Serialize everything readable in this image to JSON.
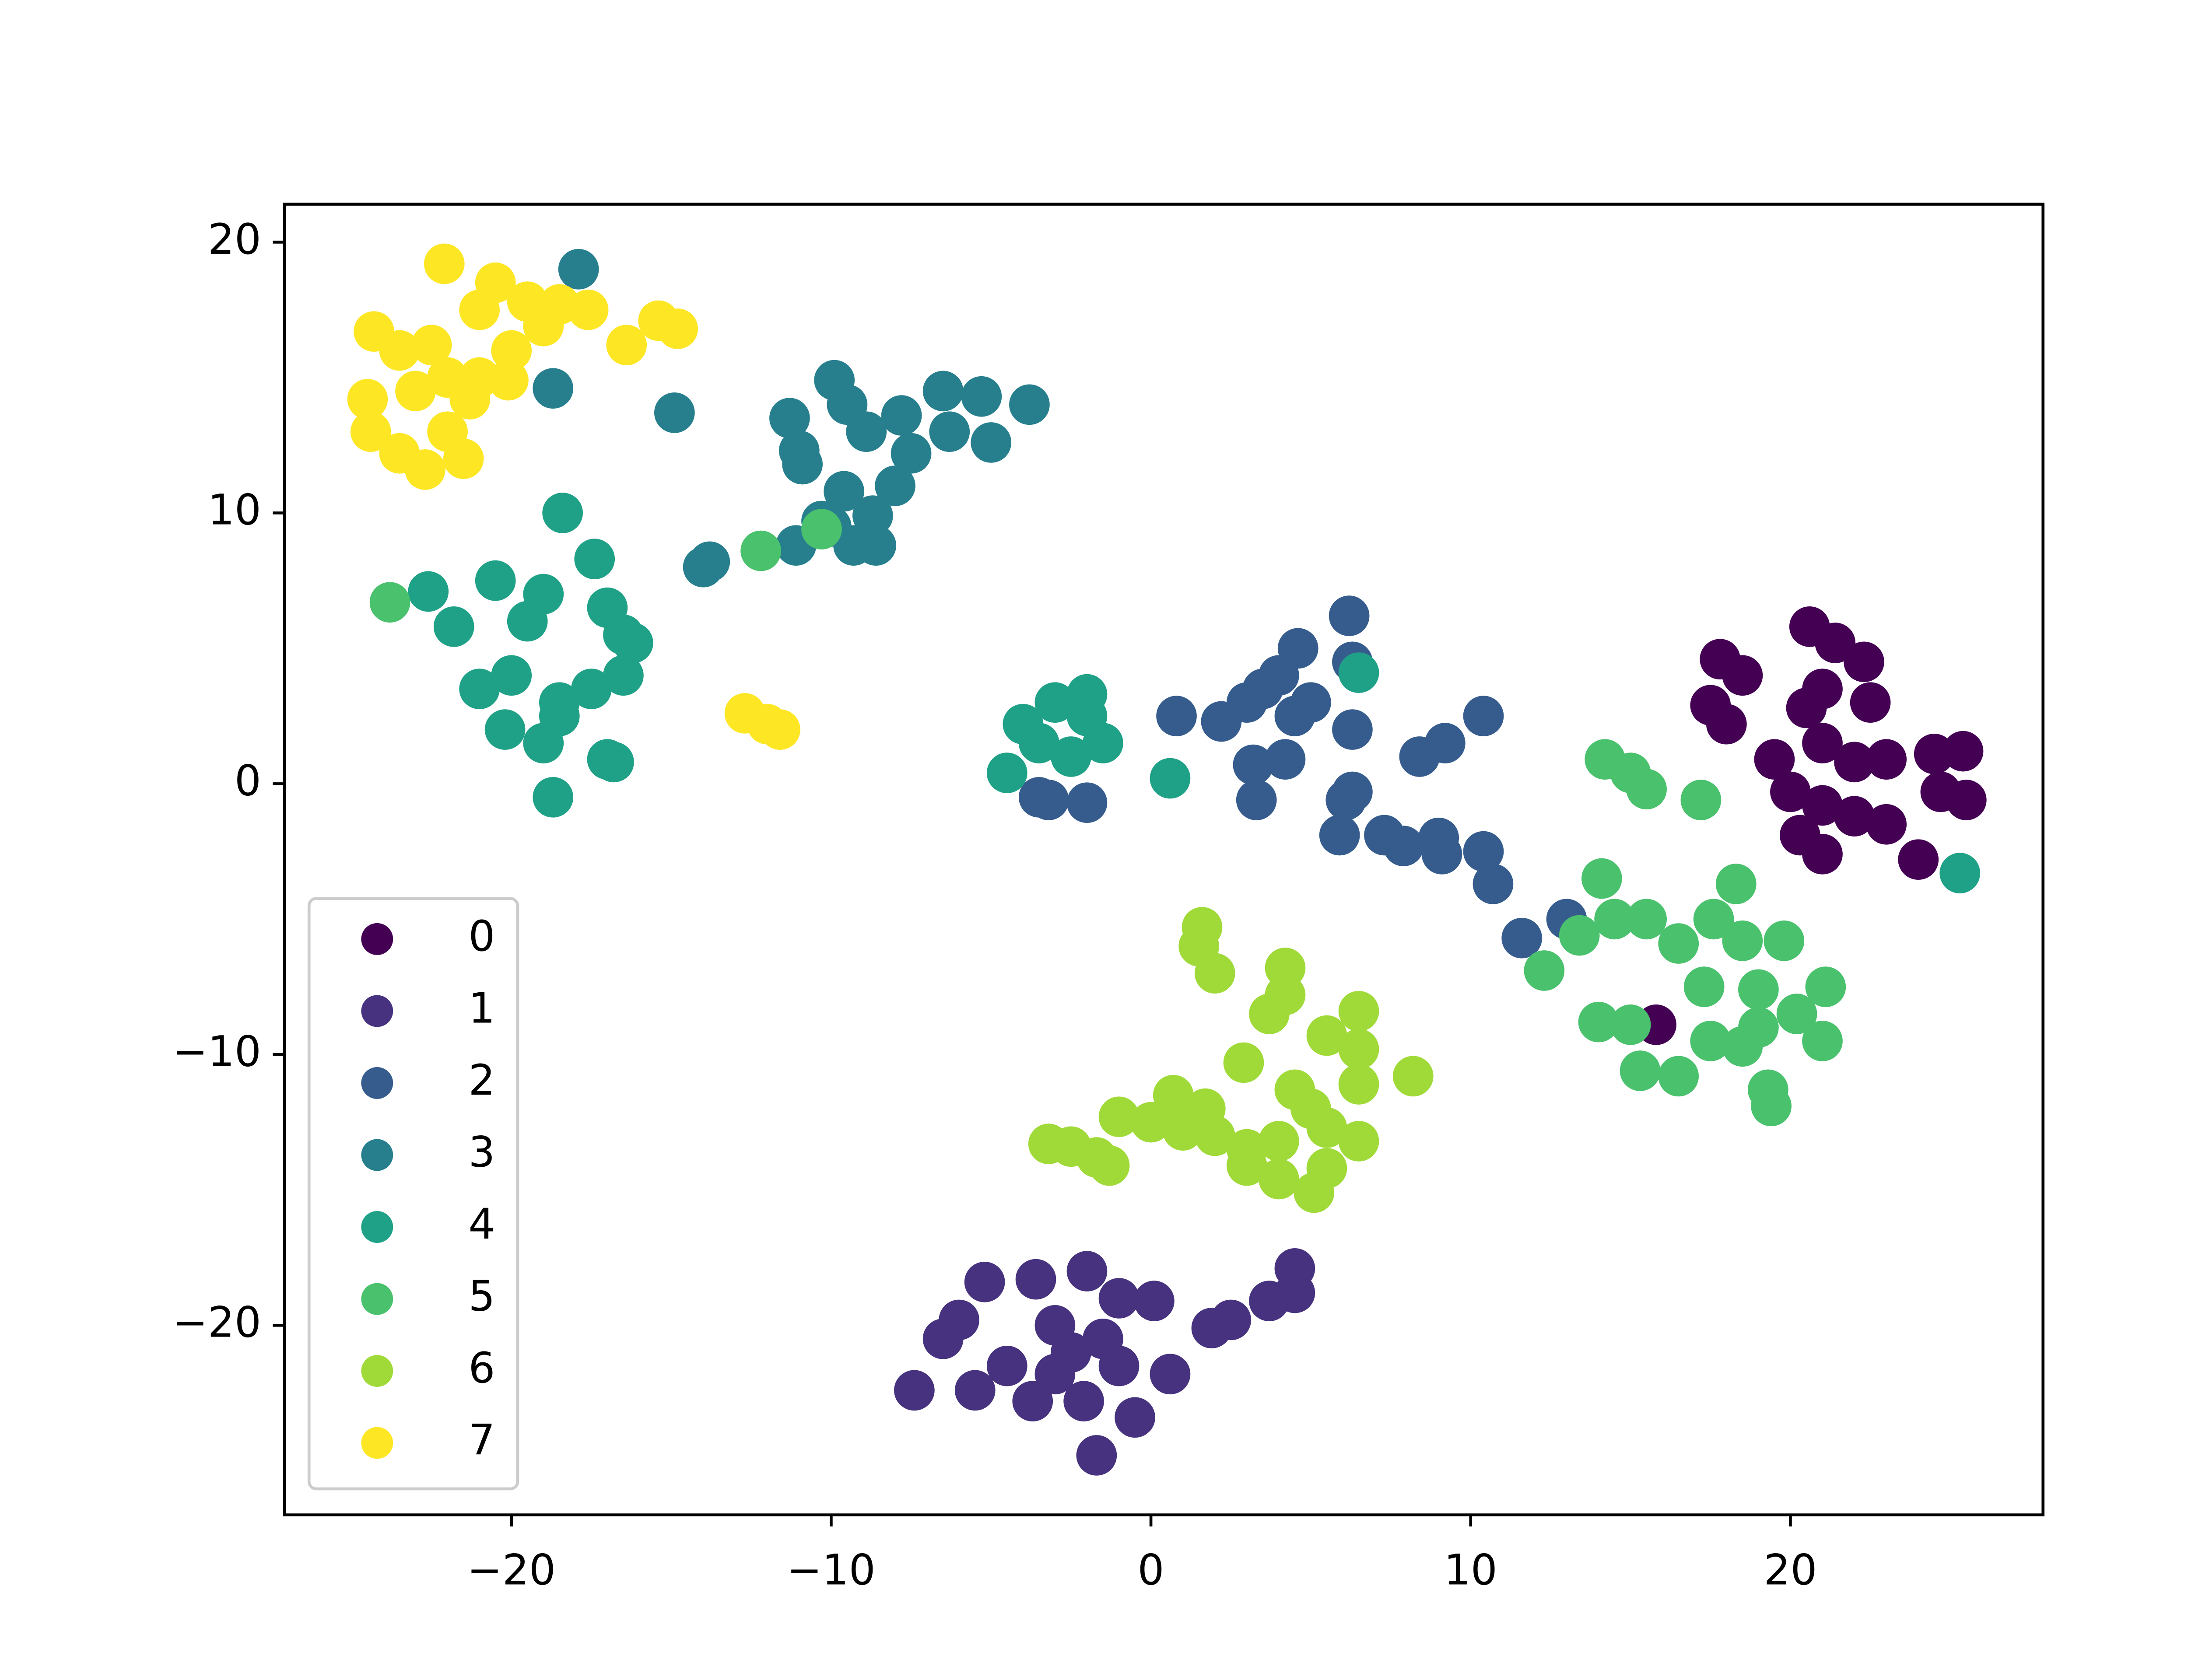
{
  "chart_data": {
    "type": "scatter",
    "xlim": [
      -27.1,
      27.9
    ],
    "ylim": [
      -27.0,
      21.4
    ],
    "xticks": [
      {
        "value": -20,
        "label": "−20"
      },
      {
        "value": -10,
        "label": "−10"
      },
      0,
      10,
      20
    ],
    "yticks": [
      {
        "value": -20,
        "label": "−20"
      },
      {
        "value": -10,
        "label": "−10"
      },
      0,
      10,
      20
    ],
    "legend": "lower left",
    "series": [
      {
        "name": "0",
        "color": "#440154",
        "x": [
          17.8,
          18.5,
          17.5,
          18,
          19.5,
          20.6,
          21.4,
          22.3,
          21,
          20.5,
          22.5,
          21,
          22,
          23,
          24.5,
          25.4,
          25.5,
          24.7,
          20,
          21,
          22,
          23,
          20.3,
          21,
          24,
          15.8
        ],
        "y": [
          4.6,
          4.0,
          2.9,
          2.2,
          0.9,
          5.8,
          5.2,
          4.5,
          3.5,
          2.8,
          3.0,
          1.5,
          0.8,
          0.9,
          1.1,
          1.2,
          -0.6,
          -0.3,
          -0.3,
          -0.8,
          -1.2,
          -1.5,
          -1.9,
          -2.6,
          -2.8,
          -8.9
        ]
      },
      {
        "name": "1",
        "color": "#46327e",
        "x": [
          -7.4,
          -6.5,
          -6,
          -5.2,
          -5.5,
          -4.5,
          -3.6,
          -3.7,
          -3,
          -2.5,
          -2,
          -2.1,
          -1.5,
          -1.7,
          -1,
          -0.5,
          0.1,
          0.6,
          1.9,
          2.5,
          3.7,
          4.5,
          4.5,
          -1,
          -3
        ],
        "y": [
          -22.4,
          -20.5,
          -19.8,
          -18.4,
          -22.4,
          -21.5,
          -18.3,
          -22.8,
          -20,
          -21,
          -18,
          -22.8,
          -20.5,
          -24.8,
          -19,
          -23.4,
          -19.1,
          -21.8,
          -20.1,
          -19.8,
          -19.1,
          -18.8,
          -17.9,
          -21.5,
          -21.8
        ]
      },
      {
        "name": "2",
        "color": "#365c8d",
        "x": [
          0.8,
          2.2,
          3,
          3.5,
          4,
          4.6,
          5,
          6.2,
          6.3,
          4.5,
          3.2,
          4.2,
          3.3,
          6.3,
          6.3,
          6.1,
          5.9,
          7.3,
          7.9,
          9,
          9.1,
          10.4,
          10.7,
          8.4,
          9.2,
          10.4,
          11.6,
          13,
          -3.2,
          -2,
          -3.5
        ],
        "y": [
          2.5,
          2.3,
          3,
          3.5,
          4,
          5,
          3,
          6.2,
          4.5,
          2.5,
          0.7,
          0.9,
          -0.6,
          2,
          -0.3,
          -0.6,
          -1.9,
          -1.9,
          -2.3,
          -2,
          -2.6,
          -2.5,
          -3.7,
          1,
          1.5,
          2.5,
          -5.7,
          -5,
          -0.6,
          -0.7,
          -0.5
        ]
      },
      {
        "name": "3",
        "color": "#277f8e",
        "x": [
          -17.9,
          -18.7,
          -14.9,
          -11.3,
          -11,
          -10.9,
          -9.9,
          -9.5,
          -8.9,
          -7.8,
          -7.5,
          -6.5,
          -6.3,
          -5.3,
          -5,
          -3.8,
          -8,
          -9.6,
          -10,
          -9.3,
          -8.7,
          -8.6,
          -11.1,
          -13.8,
          -14,
          -10.3
        ],
        "y": [
          19,
          14.6,
          13.7,
          13.5,
          12.3,
          11.8,
          14.9,
          14,
          13,
          13.6,
          12.2,
          14.5,
          13,
          14.3,
          12.6,
          14,
          11,
          10.8,
          9.5,
          8.8,
          9.9,
          8.8,
          8.8,
          8.2,
          8,
          9.7
        ]
      },
      {
        "name": "4",
        "color": "#1fa187",
        "x": [
          -22.6,
          -21.8,
          -20.5,
          -21,
          -20,
          -20.2,
          -19,
          -18.7,
          -19.5,
          -19,
          -18.4,
          -17.4,
          -17,
          -16.5,
          -16.5,
          -16.2,
          -17.5,
          -18.5,
          -17,
          -16.8,
          -18.5,
          6.5,
          0.6,
          -3,
          -2,
          -4,
          -4.5,
          -3.5,
          -2.5,
          -1.5,
          -2,
          25.3
        ],
        "y": [
          7.1,
          5.8,
          7.5,
          3.5,
          4,
          2,
          1.5,
          -0.5,
          6,
          7,
          10,
          8.3,
          6.5,
          5.5,
          4,
          5.2,
          3.5,
          3,
          0.9,
          0.8,
          2.5,
          4.1,
          0.2,
          3,
          3.3,
          2.2,
          0.4,
          1.5,
          1,
          1.5,
          2.5,
          -3.3
        ]
      },
      {
        "name": "5",
        "color": "#4ac16d",
        "x": [
          -23.8,
          -12.2,
          -10.3,
          14.2,
          15,
          15.5,
          17.2,
          14.1,
          14.5,
          15.5,
          13.4,
          12.3,
          16.5,
          17.6,
          18.3,
          18.5,
          19.8,
          17.3,
          19,
          21.1,
          20.2,
          19,
          17.5,
          21,
          18.5,
          14,
          15,
          15.3,
          16.5,
          19.3,
          19.4
        ],
        "y": [
          6.7,
          8.6,
          9.4,
          0.9,
          0.4,
          -0.2,
          -0.6,
          -3.5,
          -5,
          -5,
          -5.6,
          -6.9,
          -5.9,
          -5,
          -3.7,
          -5.8,
          -5.8,
          -7.5,
          -7.6,
          -7.5,
          -8.5,
          -9,
          -9.5,
          -9.5,
          -9.7,
          -8.8,
          -8.9,
          -10.6,
          -10.8,
          -11.3,
          -11.9
        ]
      },
      {
        "name": "6",
        "color": "#a0da39",
        "x": [
          1.6,
          1.5,
          2,
          4.2,
          4.2,
          3.7,
          6.5,
          5.5,
          2.9,
          6.5,
          6.5,
          8.2,
          4.5,
          5,
          0.7,
          1.7,
          -1,
          0,
          1,
          2,
          3,
          4,
          5.5,
          6.5,
          3,
          4,
          5.5,
          5.1,
          -3.2,
          -2.5,
          -1.3,
          -1.7
        ],
        "y": [
          -5.3,
          -6,
          -7,
          -6.8,
          -7.8,
          -8.5,
          -8.4,
          -9.3,
          -10.3,
          -9.8,
          -11.1,
          -10.8,
          -11.3,
          -12,
          -11.5,
          -12,
          -12.3,
          -12.5,
          -12.8,
          -13,
          -13.5,
          -13.2,
          -12.7,
          -13.2,
          -14.1,
          -14.6,
          -14.2,
          -15.1,
          -13.3,
          -13.4,
          -14.1,
          -13.8
        ]
      },
      {
        "name": "7",
        "color": "#fde725",
        "x": [
          -22.1,
          -20.5,
          -24.3,
          -23.5,
          -22.5,
          -21,
          -19.5,
          -18.5,
          -17.6,
          -16.4,
          -15.4,
          -14.8,
          -19,
          -24.5,
          -23,
          -22,
          -21,
          -20,
          -20.1,
          -21.3,
          -24.4,
          -23.5,
          -22.7,
          -21.5,
          -22,
          -12.7,
          -12,
          -11.6
        ],
        "y": [
          19.2,
          18.5,
          16.7,
          16,
          16.2,
          17.5,
          17.8,
          17.7,
          17.5,
          16.2,
          17.1,
          16.8,
          16.9,
          14.2,
          14.5,
          15,
          15,
          16,
          14.9,
          14.2,
          13,
          12.2,
          11.6,
          12,
          13,
          2.6,
          2.2,
          2.0
        ]
      }
    ]
  }
}
